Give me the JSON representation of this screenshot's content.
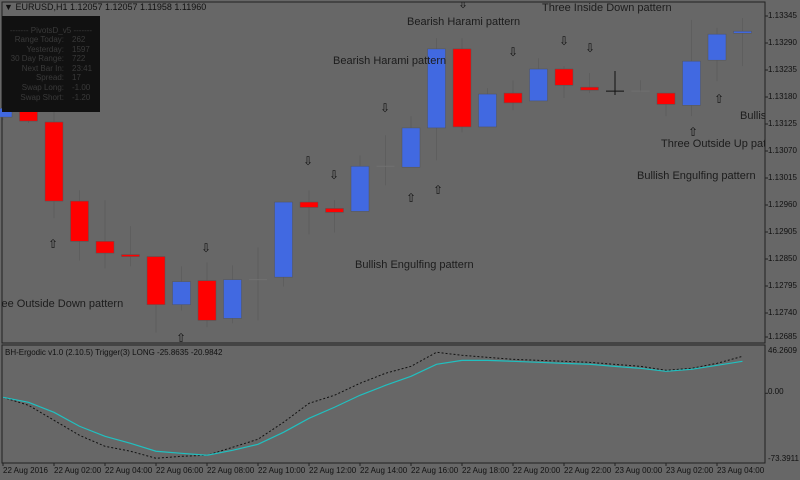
{
  "header": {
    "symbol": "EURUSD,H1",
    "ohlc": "1.12057 1.12057 1.11958 1.11960"
  },
  "info_panel": {
    "title": "------- PivotsD_v5 -------",
    "rows": [
      {
        "k": "Range  Today:",
        "v": "262"
      },
      {
        "k": "Yesterday:",
        "v": "1597"
      },
      {
        "k": "30 Day Range:",
        "v": "722"
      },
      {
        "k": "Next Bar In:",
        "v": "23:41"
      },
      {
        "k": "Spread:",
        "v": "17"
      },
      {
        "k": "Swap  Long:",
        "v": "-1.00"
      },
      {
        "k": "Swap  Short:",
        "v": "-1.20"
      }
    ]
  },
  "patterns": [
    "Bearish Harami pattern",
    "Bearish Harami pattern",
    "Three Inside Down pattern",
    "Three Outside Down pattern",
    "Bullish Engulfing pattern",
    "Three Outside Up pattern",
    "Bullish Engulfing pattern",
    "Bullish Engulfing pattern"
  ],
  "colors": {
    "background": "#676767",
    "bull": "#4169e1",
    "bear": "#ff0000",
    "doji": "#707070",
    "signal": "#20c0c0",
    "trigger": "#111111"
  },
  "icons": {
    "down": "hollow-down-arrow",
    "up": "hollow-up-arrow"
  },
  "price_axis": {
    "ticks": [
      "1.13345",
      "1.13290",
      "1.13235",
      "1.13180",
      "1.13125",
      "1.13070",
      "1.13015",
      "1.12960",
      "1.12905",
      "1.12850",
      "1.12795",
      "1.12740",
      "1.12685"
    ]
  },
  "indicator": {
    "title": "BH-Ergodic v1.0 (2.10.5) Trigger(3) LONG -25.8635 -20.9842",
    "max_label": "46.2609",
    "zero_label": "0.00",
    "min_label": "-73.3911"
  },
  "time_axis": [
    "22 Aug 2016",
    "22 Aug 02:00",
    "22 Aug 04:00",
    "22 Aug 06:00",
    "22 Aug 08:00",
    "22 Aug 10:00",
    "22 Aug 12:00",
    "22 Aug 14:00",
    "22 Aug 16:00",
    "22 Aug 18:00",
    "22 Aug 20:00",
    "22 Aug 22:00",
    "23 Aug 00:00",
    "23 Aug 02:00",
    "23 Aug 04:00"
  ],
  "chart_data": {
    "type": "candlestick",
    "timeframe": "H1",
    "ylim": [
      1.12685,
      1.13345
    ],
    "candles": [
      [
        1.13139,
        1.13174,
        1.13133,
        1.13157
      ],
      [
        1.13157,
        1.13174,
        1.13127,
        1.13131
      ],
      [
        1.13129,
        1.13153,
        1.12933,
        1.12968
      ],
      [
        1.12968,
        1.1299,
        1.12847,
        1.12886
      ],
      [
        1.12886,
        1.1297,
        1.12831,
        1.12862
      ],
      [
        1.12859,
        1.12917,
        1.12835,
        1.12857
      ],
      [
        1.12855,
        1.12855,
        1.127,
        1.12757
      ],
      [
        1.12757,
        1.12835,
        1.12745,
        1.12804
      ],
      [
        1.12806,
        1.12843,
        1.12711,
        1.12725
      ],
      [
        1.12729,
        1.12837,
        1.12719,
        1.12808
      ],
      [
        1.12808,
        1.12874,
        1.12725,
        1.12808
      ],
      [
        1.12813,
        1.12966,
        1.12794,
        1.12966
      ],
      [
        1.12966,
        1.1299,
        1.129,
        1.12955
      ],
      [
        1.12953,
        1.1297,
        1.12904,
        1.12945
      ],
      [
        1.12947,
        1.13061,
        1.12947,
        1.13039
      ],
      [
        1.13039,
        1.13102,
        1.13,
        1.13039
      ],
      [
        1.13037,
        1.13141,
        1.13037,
        1.13117
      ],
      [
        1.13117,
        1.133,
        1.13051,
        1.13278
      ],
      [
        1.13278,
        1.133,
        1.13108,
        1.13119
      ],
      [
        1.13119,
        1.13198,
        1.13119,
        1.13186
      ],
      [
        1.13188,
        1.13214,
        1.13153,
        1.13168
      ],
      [
        1.13172,
        1.13259,
        1.13172,
        1.13237
      ],
      [
        1.13237,
        1.13243,
        1.13178,
        1.13204
      ],
      [
        1.132,
        1.13229,
        1.13188,
        1.13194
      ],
      [
        1.13192,
        1.13233,
        1.13184,
        1.13192
      ],
      [
        1.13192,
        1.13214,
        1.1319,
        1.13192
      ],
      [
        1.13188,
        1.13188,
        1.13141,
        1.13165
      ],
      [
        1.13163,
        1.13337,
        1.13141,
        1.13253
      ],
      [
        1.13255,
        1.13321,
        1.13212,
        1.13308
      ],
      [
        1.13312,
        1.13341,
        1.13243,
        1.13314
      ]
    ],
    "indicator": {
      "ylim": [
        -73.3911,
        46.2609
      ],
      "signal": [
        -4.3,
        -9.6,
        -20.3,
        -35.2,
        -46.0,
        -53.4,
        -61.9,
        -64.1,
        -66.2,
        -60.9,
        -54.5,
        -41.7,
        -26.7,
        -14.9,
        -2.1,
        8.5,
        18.2,
        31.0,
        35.2,
        35.2,
        34.2,
        33.1,
        32.0,
        31.0,
        28.8,
        26.7,
        23.5,
        25.6,
        29.9,
        34.2
      ],
      "trigger": [
        -4.3,
        -12.8,
        -28.8,
        -44.9,
        -56.6,
        -61.9,
        -69.4,
        -67.3,
        -66.2,
        -57.7,
        -49.1,
        -31.0,
        -10.7,
        -2.1,
        10.7,
        21.4,
        28.8,
        43.8,
        40.6,
        38.4,
        36.3,
        35.2,
        34.2,
        33.1,
        30.9,
        28.8,
        24.6,
        26.7,
        32.0,
        39.5
      ]
    }
  }
}
